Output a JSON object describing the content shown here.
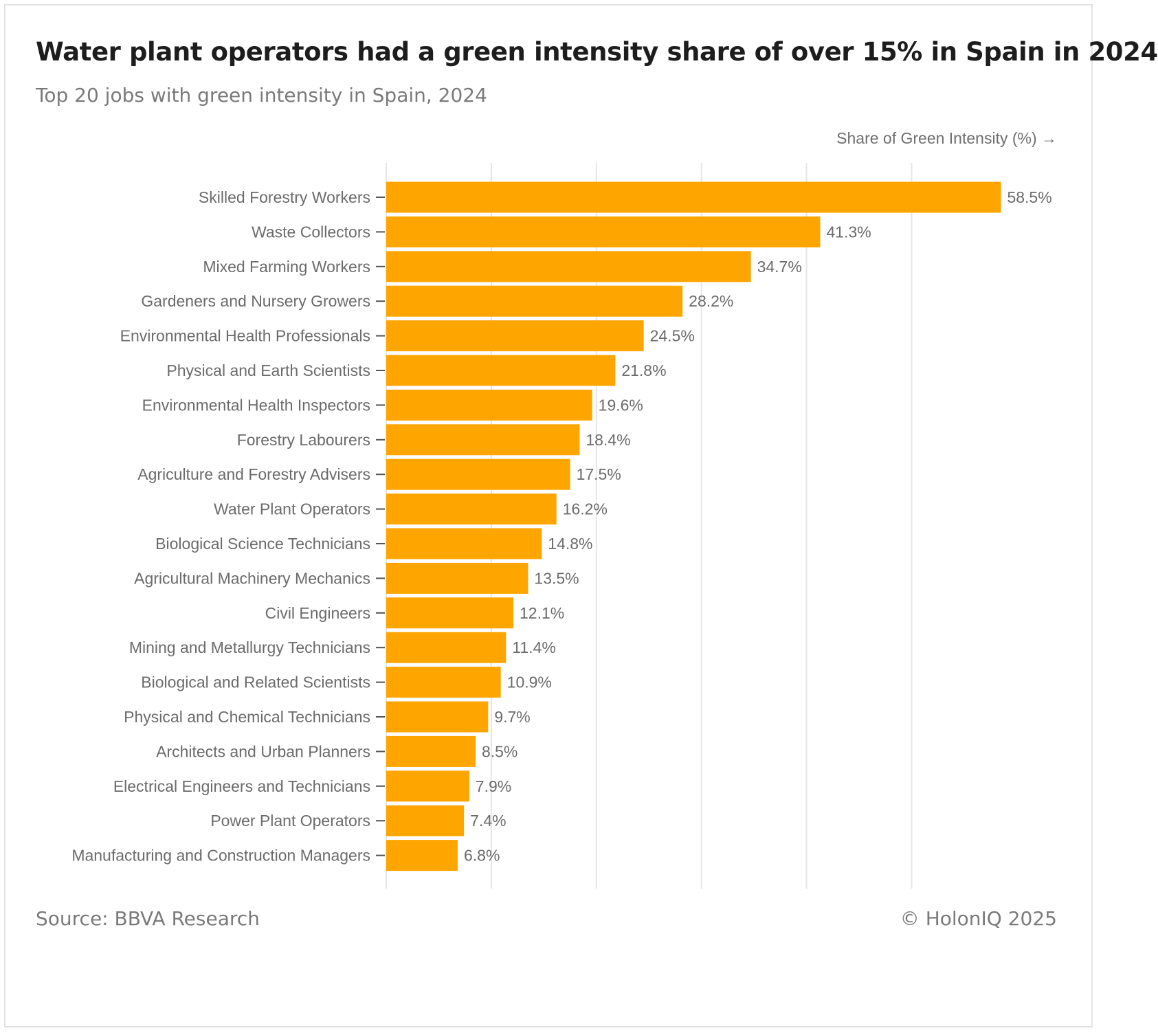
{
  "header": {
    "title": "Water plant operators had a green intensity share of over 15% in Spain in 2024",
    "subtitle": "Top 20 jobs with green intensity in Spain, 2024"
  },
  "footer": {
    "source": "Source: BBVA Research",
    "copyright": "© HolonIQ 2025"
  },
  "colors": {
    "bar": "#FFA500",
    "grid": "#e6e6e6",
    "label_text": "#6b6b6b"
  },
  "chart_data": {
    "type": "bar",
    "orientation": "horizontal",
    "xlabel": "Share of Green Intensity (%) →",
    "ylabel": "",
    "xlim": [
      0,
      60
    ],
    "grid": true,
    "value_suffix": "%",
    "categories": [
      "Skilled Forestry Workers",
      "Waste Collectors",
      "Mixed Farming Workers",
      "Gardeners and Nursery Growers",
      "Environmental Health Professionals",
      "Physical and Earth Scientists",
      "Environmental Health Inspectors",
      "Forestry Labourers",
      "Agriculture and Forestry Advisers",
      "Water Plant Operators",
      "Biological Science Technicians",
      "Agricultural Machinery Mechanics",
      "Civil Engineers",
      "Mining and Metallurgy Technicians",
      "Biological and Related Scientists",
      "Physical and Chemical Technicians",
      "Architects and Urban Planners",
      "Electrical Engineers and Technicians",
      "Power Plant Operators",
      "Manufacturing and Construction Managers"
    ],
    "values": [
      58.5,
      41.3,
      34.7,
      28.2,
      24.5,
      21.8,
      19.6,
      18.4,
      17.5,
      16.2,
      14.8,
      13.5,
      12.1,
      11.4,
      10.9,
      9.7,
      8.5,
      7.9,
      7.4,
      6.8
    ]
  }
}
